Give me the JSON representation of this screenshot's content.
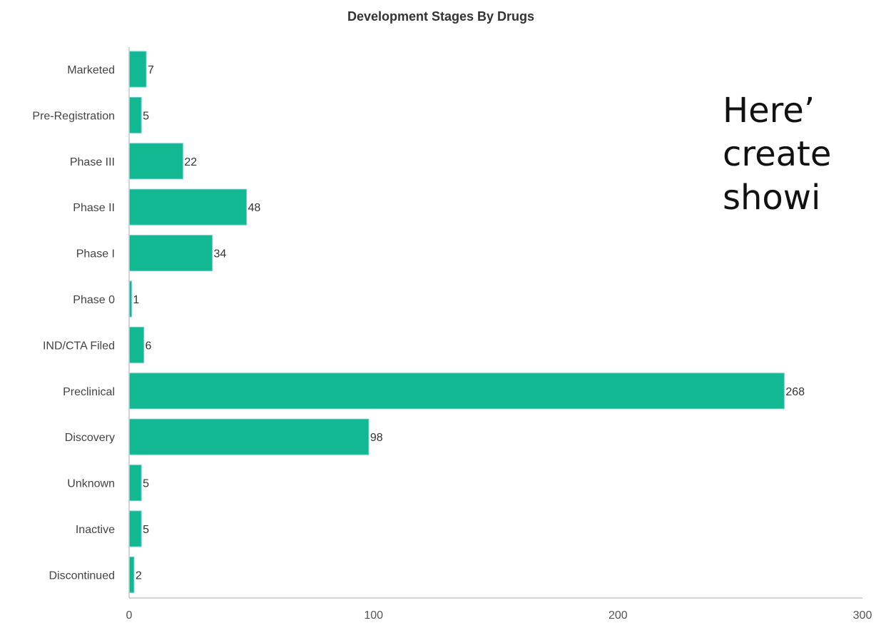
{
  "colors": {
    "bar_fill": "#12b892",
    "bar_stroke": "#6fc9d3",
    "axis": "#c8c8c8",
    "title": "#333333",
    "label": "#444444"
  },
  "overlay": {
    "lines": [
      "Here’",
      "create",
      "showi"
    ]
  },
  "chart_data": {
    "type": "bar",
    "orientation": "horizontal",
    "title": "Development Stages By Drugs",
    "xlabel": "",
    "ylabel": "",
    "categories": [
      "Marketed",
      "Pre-Registration",
      "Phase III",
      "Phase II",
      "Phase I",
      "Phase 0",
      "IND/CTA Filed",
      "Preclinical",
      "Discovery",
      "Unknown",
      "Inactive",
      "Discontinued"
    ],
    "values": [
      7,
      5,
      22,
      48,
      34,
      1,
      6,
      268,
      98,
      5,
      5,
      2
    ],
    "xlim": [
      0,
      300
    ],
    "xticks": [
      0,
      100,
      200,
      300
    ],
    "grid": false,
    "legend": "none"
  }
}
